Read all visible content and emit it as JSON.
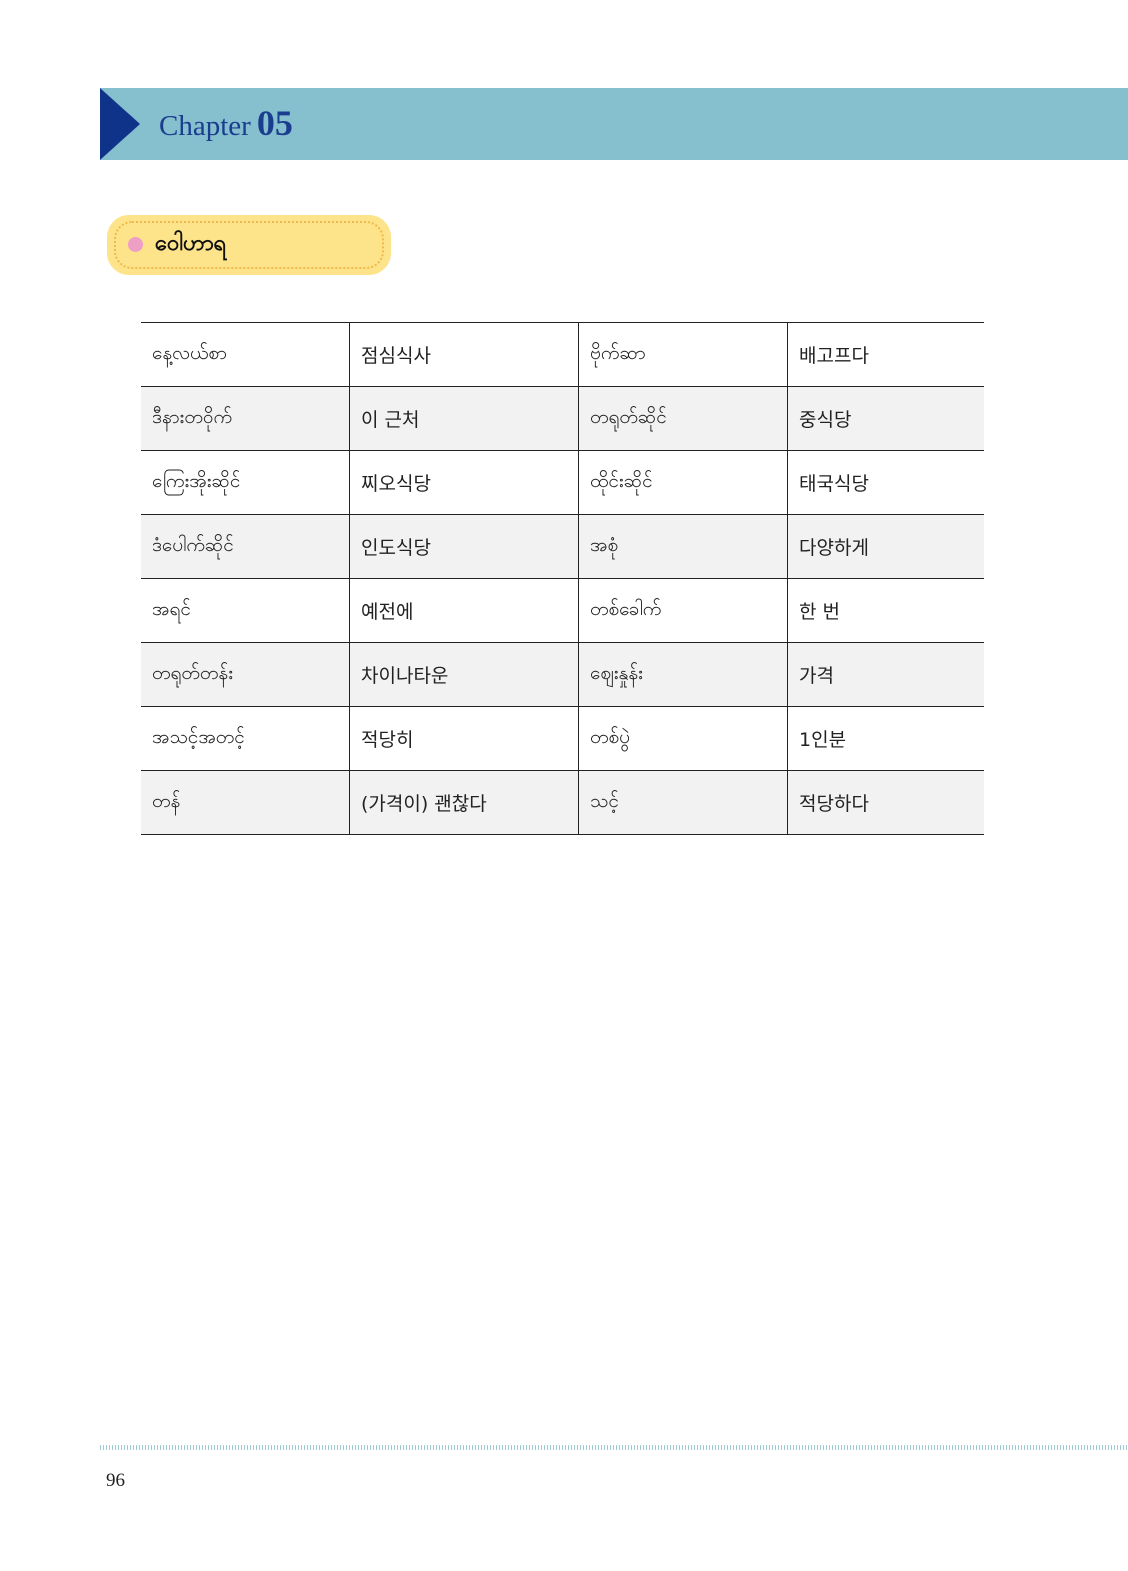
{
  "header": {
    "chapter_label": "Chapter",
    "chapter_number": "05",
    "colors": {
      "band": "#86bfcd",
      "arrow": "#0f3389"
    }
  },
  "section": {
    "title": "ဝေါဟာရ",
    "bullet_color": "#ee9fc6",
    "pill_color": "#fde38a"
  },
  "vocab": {
    "rows": [
      [
        "နေ့လယ်စာ",
        "점심식사",
        "ဗိုက်ဆာ",
        "배고프다"
      ],
      [
        "ဒီနားတဝိုက်",
        "이 근처",
        "တရုတ်ဆိုင်",
        "중식당"
      ],
      [
        "ကြေးအိုးဆိုင်",
        "찌오식당",
        "ထိုင်းဆိုင်",
        "태국식당"
      ],
      [
        "ဒံပေါက်ဆိုင်",
        "인도식당",
        "အစုံ",
        "다양하게"
      ],
      [
        "အရင်",
        "예전에",
        "တစ်ခေါက်",
        "한 번"
      ],
      [
        "တရုတ်တန်း",
        "차이나타운",
        "ဈေးနှုန်း",
        "가격"
      ],
      [
        "အသင့်အတင့်",
        "적당히",
        "တစ်ပွဲ",
        "1인분"
      ],
      [
        "တန်",
        "(가격이) 괜찮다",
        "သင့်",
        "적당하다"
      ]
    ]
  },
  "footer": {
    "page_number": "96"
  }
}
